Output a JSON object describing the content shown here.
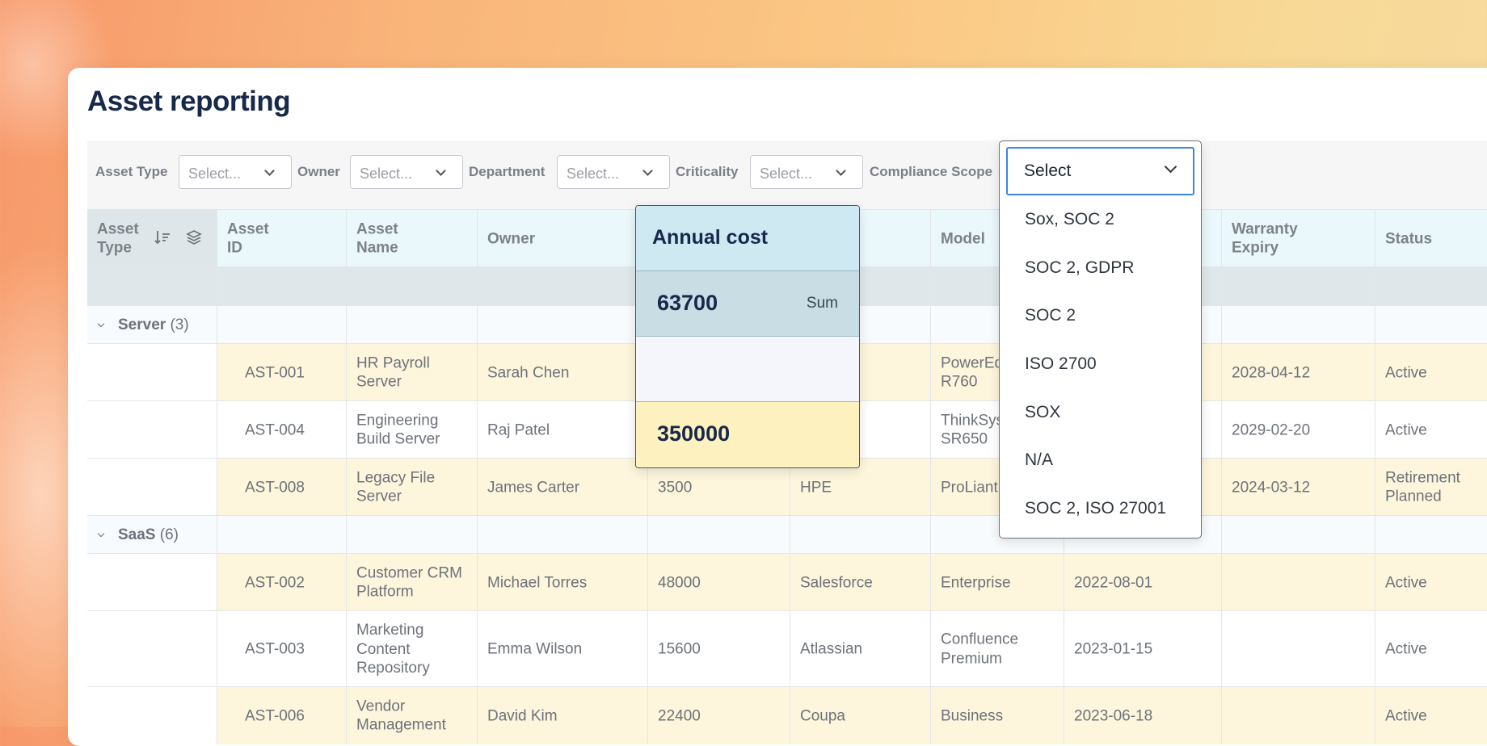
{
  "page": {
    "title": "Asset reporting"
  },
  "filters": [
    {
      "label": "Asset Type",
      "placeholder": "Select..."
    },
    {
      "label": "Owner",
      "placeholder": "Select..."
    },
    {
      "label": "Department",
      "placeholder": "Select..."
    },
    {
      "label": "Criticality",
      "placeholder": "Select..."
    },
    {
      "label": "Compliance Scope",
      "placeholder": ""
    }
  ],
  "columns": [
    "Asset\nType",
    "Asset\nID",
    "Asset\nName",
    "Owner",
    "",
    "",
    "Model",
    "",
    "Warranty\nExpiry",
    "Status"
  ],
  "groups": [
    {
      "name": "Server",
      "count": "(3)",
      "rows": [
        [
          "AST-001",
          "HR Payroll\nServer",
          "Sarah Chen",
          "",
          "",
          "PowerEd\nR760",
          "",
          "2028-04-12",
          "Active"
        ],
        [
          "AST-004",
          "Engineering\nBuild Server",
          "Raj Patel",
          "",
          "",
          "ThinkSys\nSR650",
          "",
          "2029-02-20",
          "Active"
        ],
        [
          "AST-008",
          "Legacy File\nServer",
          "James Carter",
          "3500",
          "HPE",
          "ProLiant",
          "",
          "2024-03-12",
          "Retirement\nPlanned"
        ]
      ]
    },
    {
      "name": "SaaS",
      "count": "(6)",
      "rows": [
        [
          "AST-002",
          "Customer CRM\nPlatform",
          "Michael Torres",
          "48000",
          "Salesforce",
          "Enterprise",
          "2022-08-01",
          "",
          "Active"
        ],
        [
          "AST-003",
          "Marketing\nContent\nRepository",
          "Emma Wilson",
          "15600",
          "Atlassian",
          "Confluence\nPremium",
          "2023-01-15",
          "",
          "Active"
        ],
        [
          "AST-006",
          "Vendor\nManagement",
          "David Kim",
          "22400",
          "Coupa",
          "Business",
          "2023-06-18",
          "",
          "Active"
        ]
      ]
    }
  ],
  "aggregate_popup": {
    "title": "Annual cost",
    "sum_value": "63700",
    "sum_label": "Sum",
    "total_value": "350000"
  },
  "compliance_dropdown": {
    "selected": "Select",
    "options": [
      "Sox, SOC 2",
      "SOC 2, GDPR",
      "SOC 2",
      "ISO 2700",
      "SOX",
      "N/A",
      "SOC 2, ISO 27001"
    ]
  },
  "colors": {
    "accent_focus": "#3c84e0",
    "title": "#17294a",
    "row_highlight": "#fdf6dc"
  }
}
